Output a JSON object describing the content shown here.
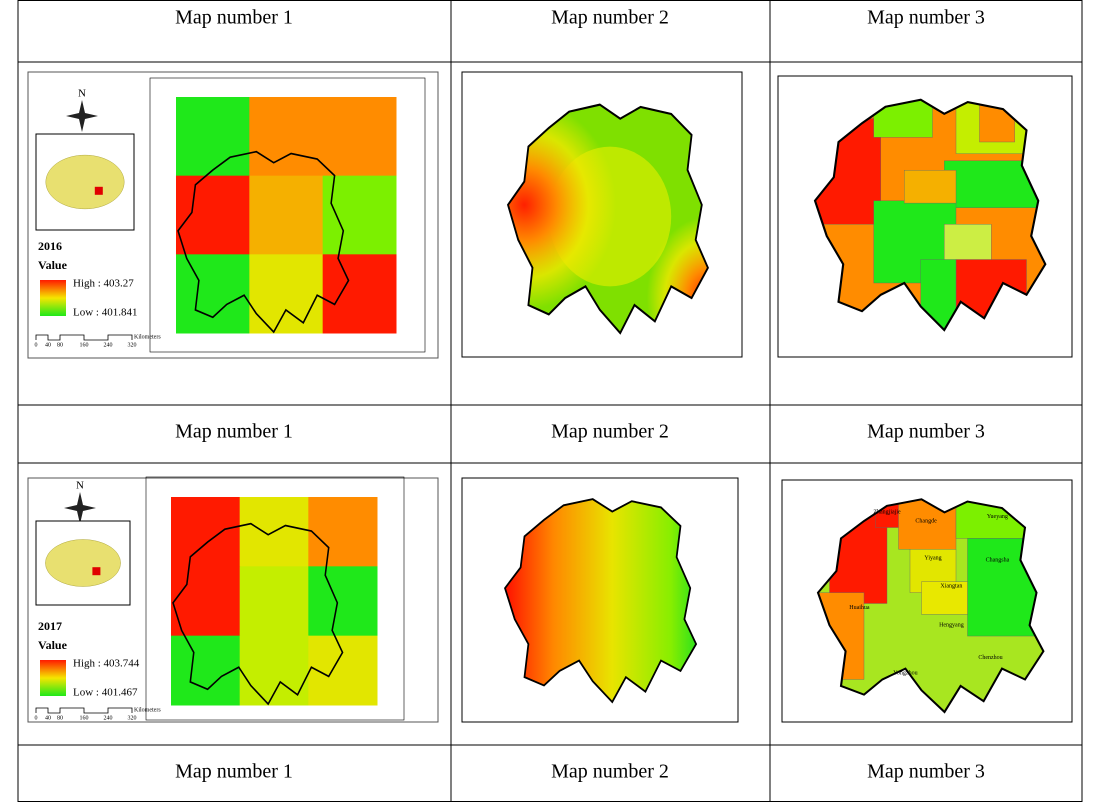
{
  "header": {
    "cells": [
      "Map number 1",
      "Map number 2",
      "Map number 3"
    ]
  },
  "panels": [
    {
      "year": "2016",
      "legend_title": "Value",
      "high": "High : 403.27",
      "low": "Low : 401.841",
      "north": "N",
      "scale": [
        "0",
        "40",
        "80",
        "160",
        "240",
        "320"
      ],
      "scale_unit": "Kilometers",
      "captions": [
        "Map number 1",
        "Map number 2",
        "Map number 3"
      ]
    },
    {
      "year": "2017",
      "legend_title": "Value",
      "high": "High : 403.744",
      "low": "Low : 401.467",
      "north": "N",
      "scale": [
        "0",
        "40",
        "80",
        "160",
        "240",
        "320"
      ],
      "scale_unit": "Kilometers",
      "captions": [
        "Map number 1",
        "Map number 2",
        "Map number 3"
      ],
      "city_labels": [
        "Zhangjiajie",
        "Changde",
        "Yueyang",
        "Yiyang",
        "Changsha",
        "Xiangtan",
        "Huaihua",
        "Hengyang",
        "Yongzhou",
        "Chenzhou"
      ]
    }
  ]
}
